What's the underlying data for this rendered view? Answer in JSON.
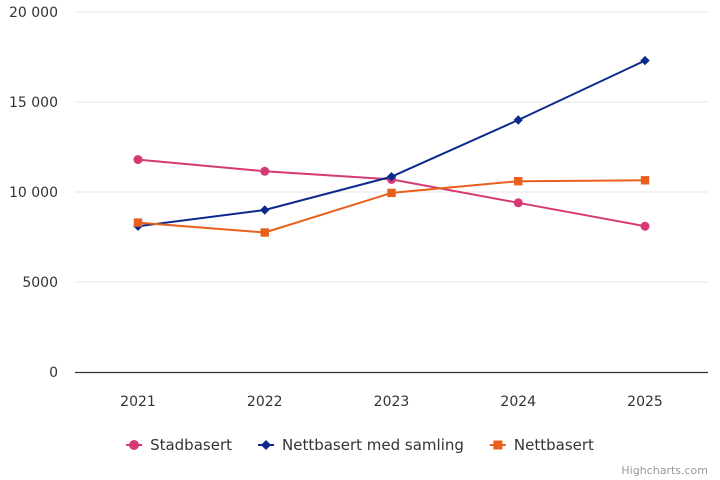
{
  "chart_data": {
    "type": "line",
    "categories": [
      "2021",
      "2022",
      "2023",
      "2024",
      "2025"
    ],
    "ylim": [
      0,
      20000
    ],
    "yticks": [
      {
        "value": 0,
        "label": "0"
      },
      {
        "value": 5000,
        "label": "5000"
      },
      {
        "value": 10000,
        "label": "10 000"
      },
      {
        "value": 15000,
        "label": "15 000"
      },
      {
        "value": 20000,
        "label": "20 000"
      }
    ],
    "grid": true,
    "legend_position": "bottom-center",
    "series": [
      {
        "name": "Stadbasert",
        "color": "#d63a76",
        "marker": "circle",
        "values": [
          11800,
          11150,
          10700,
          9400,
          8100
        ]
      },
      {
        "name": "Nettbasert med samling",
        "color": "#0c2a8c",
        "marker": "diamond",
        "values": [
          8100,
          9000,
          10850,
          14000,
          17300
        ]
      },
      {
        "name": "Nettbasert",
        "color": "#e8601c",
        "marker": "square",
        "values": [
          8300,
          7750,
          9950,
          10600,
          10650
        ]
      }
    ]
  },
  "credits": "Highcharts.com"
}
